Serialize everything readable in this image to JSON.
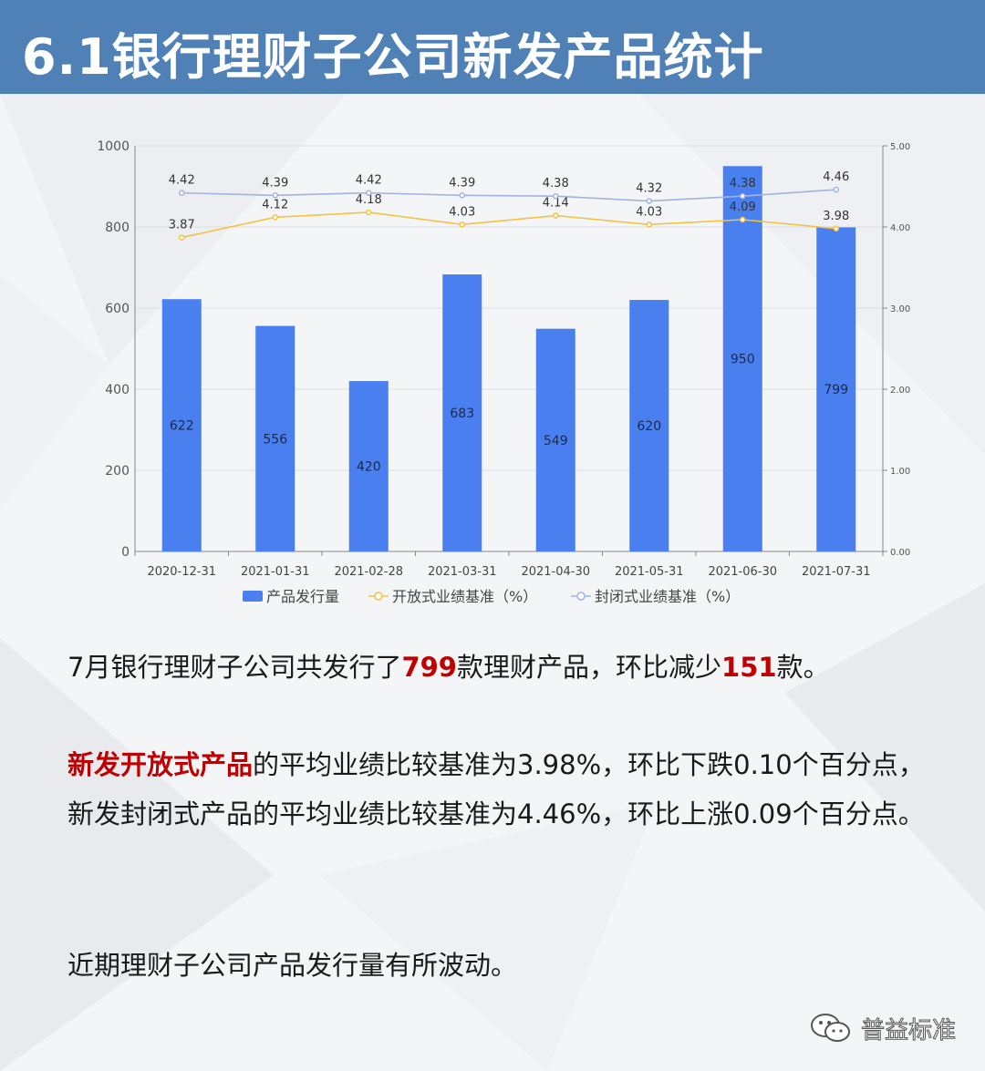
{
  "header": {
    "title": "6.1银行理财子公司新发产品统计"
  },
  "chart_data": {
    "type": "bar",
    "categories": [
      "2020-12-31",
      "2021-01-31",
      "2021-02-28",
      "2021-03-31",
      "2021-04-30",
      "2021-05-31",
      "2021-06-30",
      "2021-07-31"
    ],
    "series": [
      {
        "name": "产品发行量",
        "type": "bar",
        "axis": "left",
        "color": "#4a7ff0",
        "values": [
          622,
          556,
          420,
          683,
          549,
          620,
          950,
          799
        ]
      },
      {
        "name": "开放式业绩基准（%）",
        "type": "line",
        "axis": "right",
        "color": "#f5c242",
        "values": [
          3.87,
          4.12,
          4.18,
          4.03,
          4.14,
          4.03,
          4.09,
          3.98
        ]
      },
      {
        "name": "封闭式业绩基准（%）",
        "type": "line",
        "axis": "right",
        "color": "#a3b3e0",
        "values": [
          4.42,
          4.39,
          4.42,
          4.39,
          4.38,
          4.32,
          4.38,
          4.46
        ]
      }
    ],
    "ylim_left": [
      0,
      1000
    ],
    "yticks_left": [
      "0",
      "200",
      "400",
      "600",
      "800",
      "1000"
    ],
    "ylim_right": [
      0,
      5
    ],
    "yticks_right": [
      "0.00",
      "1.00",
      "2.00",
      "3.00",
      "4.00",
      "5.00"
    ],
    "grid": true,
    "legend_position": "bottom-center"
  },
  "text": {
    "p1_a": "7月银行理财子公司共发行了",
    "p1_num1": "799",
    "p1_b": "款理财产品，环比减少",
    "p1_num2": "151",
    "p1_c": "款。",
    "p2_hl": "新发开放式产品",
    "p2_a": "的平均业绩比较基准为3.98%，环比下跌0.10个百分点，新发封闭式产品的平均业绩比较基准为4.46%，环比上涨0.09个百分点。",
    "p3": "近期理财子公司产品发行量有所波动。"
  },
  "watermark": {
    "text": "普益标准",
    "icon": "wechat-icon"
  }
}
